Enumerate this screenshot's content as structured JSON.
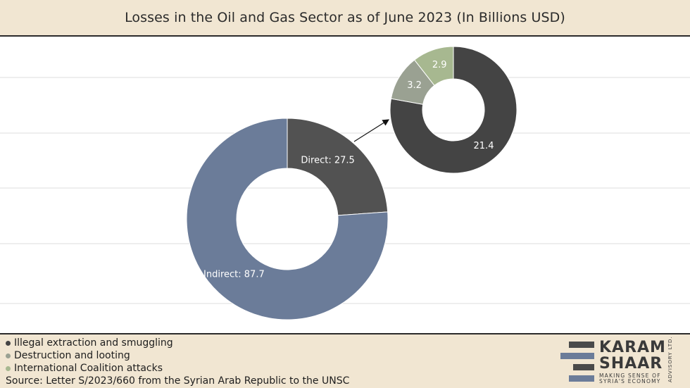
{
  "title": "Losses in the Oil and Gas Sector as of June 2023 (In Billions USD)",
  "chart_data": [
    {
      "type": "pie",
      "variant": "donut",
      "slices": [
        {
          "label": "Direct",
          "value": 27.5,
          "display": "Direct: 27.5",
          "color": "#525252"
        },
        {
          "label": "Indirect",
          "value": 87.7,
          "display": "Indirect: 87.7",
          "color": "#6b7c99"
        }
      ]
    },
    {
      "type": "pie",
      "variant": "donut",
      "slices": [
        {
          "label": "Illegal extraction and smuggling",
          "value": 21.4,
          "display": "21.4",
          "color": "#444444"
        },
        {
          "label": "Destruction and looting",
          "value": 3.2,
          "display": "3.2",
          "color": "#9aa192"
        },
        {
          "label": "International Coalition attacks",
          "value": 2.9,
          "display": "2.9",
          "color": "#a7b890"
        }
      ]
    }
  ],
  "legend": [
    {
      "label": "Illegal extraction and smuggling",
      "color": "#444444"
    },
    {
      "label": "Destruction and looting",
      "color": "#9aa192"
    },
    {
      "label": "International Coalition attacks",
      "color": "#a7b890"
    }
  ],
  "source": "Source: Letter S/2023/660 from the Syrian Arab Republic to the UNSC",
  "logo": {
    "line1": "KARAM",
    "line2": "SHAAR",
    "tagline1": "MAKING SENSE OF",
    "tagline2": "SYRIA'S ECONOMY",
    "vertical": "ADVISORY LTD."
  }
}
